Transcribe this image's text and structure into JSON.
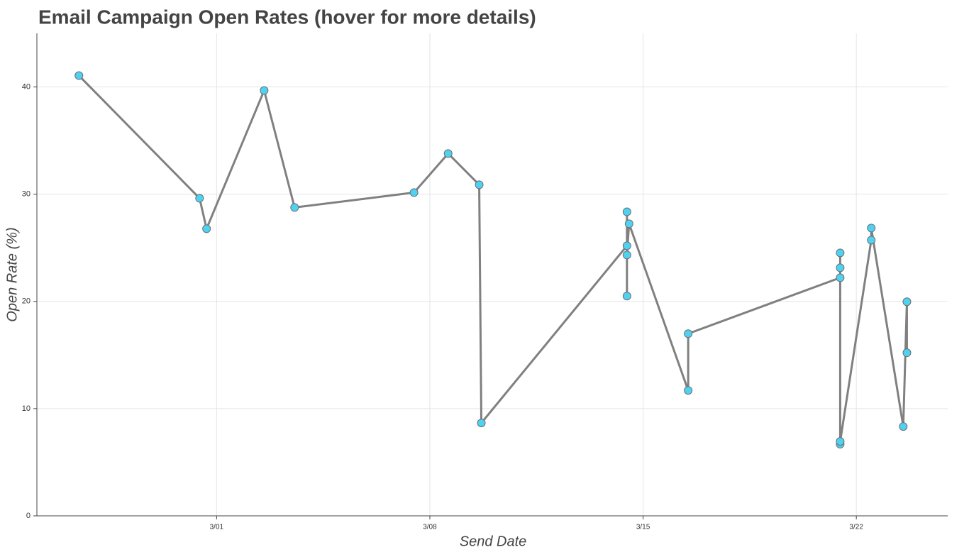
{
  "chart_data": {
    "type": "line",
    "title": "Email Campaign Open Rates (hover for more details)",
    "x_label": "Send Date",
    "y_label": "Open Rate (%)",
    "x": [
      -3.52,
      0.44,
      0.67,
      2.56,
      3.56,
      7.48,
      8.6,
      9.62,
      9.69,
      14.47,
      14.47,
      14.47,
      14.47,
      14.54,
      16.48,
      16.48,
      21.47,
      21.47,
      21.47,
      21.47,
      21.47,
      22.49,
      22.49,
      23.54,
      23.66,
      23.66
    ],
    "series": [
      {
        "name": "Open Rate",
        "color": "#4fd1f2",
        "line_color": "#808080",
        "values": [
          41.06,
          29.62,
          26.78,
          39.67,
          28.76,
          30.15,
          33.79,
          30.88,
          8.66,
          25.19,
          20.5,
          28.36,
          24.33,
          27.24,
          11.7,
          16.99,
          22.21,
          24.53,
          23.14,
          6.68,
          6.94,
          25.72,
          26.84,
          8.33,
          19.97,
          15.21
        ]
      }
    ],
    "xlim": [
      -4.9,
      25.0
    ],
    "xticks": [
      {
        "value": 1,
        "label": "3/01"
      },
      {
        "value": 8,
        "label": "3/08"
      },
      {
        "value": 15,
        "label": "3/15"
      },
      {
        "value": 22,
        "label": "3/22"
      }
    ],
    "ylim": [
      0,
      45
    ],
    "yticks": [
      0,
      10,
      20,
      30,
      40
    ],
    "grid": true
  }
}
